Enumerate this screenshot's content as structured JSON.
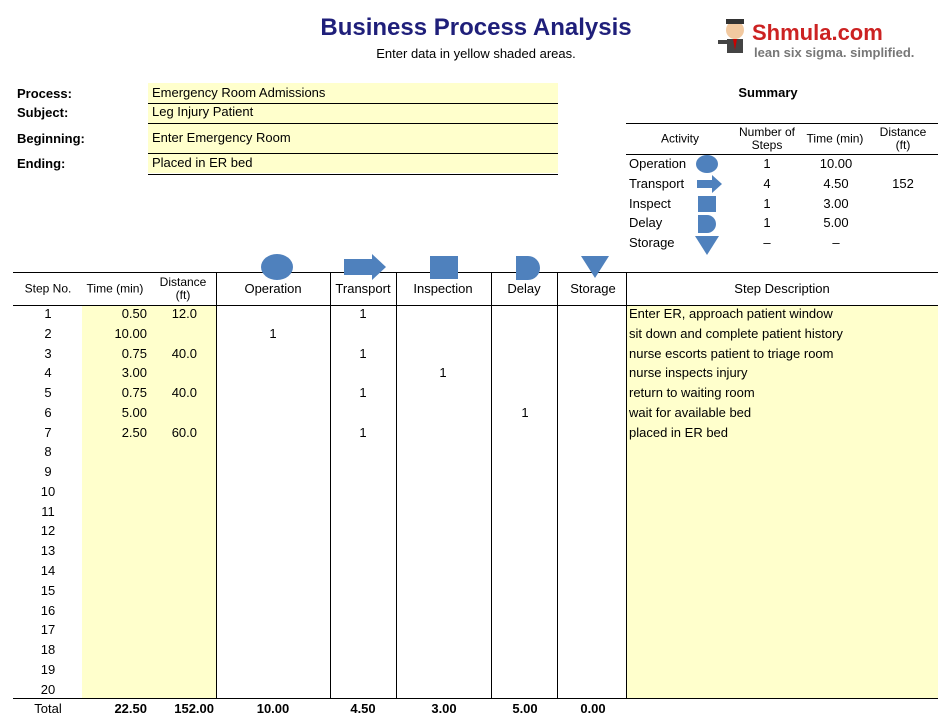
{
  "header": {
    "title": "Business Process Analysis",
    "subtitle": "Enter data in yellow shaded areas.",
    "logo_name": "Shmula.com",
    "logo_tagline": "lean six sigma. simplified."
  },
  "process": [
    {
      "label": "Process:",
      "value": "Emergency Room Admissions"
    },
    {
      "label": "Subject:",
      "value": "Leg Injury Patient"
    },
    {
      "label": "Beginning:",
      "value": "Enter Emergency Room"
    },
    {
      "label": "Ending:",
      "value": "Placed in ER bed"
    }
  ],
  "summary": {
    "title": "Summary",
    "columns": [
      "Activity",
      "Number of Steps",
      "Time (min)",
      "Distance (ft)"
    ],
    "rows": [
      [
        "Operation",
        "1",
        "10.00",
        null
      ],
      [
        "Transport",
        "4",
        "4.50",
        "152"
      ],
      [
        "Inspect",
        "1",
        "3.00",
        null
      ],
      [
        "Delay",
        "1",
        "5.00",
        null
      ],
      [
        "Storage",
        "–",
        "–",
        null
      ]
    ]
  },
  "steps_table": {
    "columns": [
      "Step No.",
      "Time (min)",
      "Distance (ft)",
      "Operation",
      "Transport",
      "Inspection",
      "Delay",
      "Storage",
      "Step Description"
    ],
    "rows": [
      [
        "1",
        "0.50",
        "12.0",
        null,
        "1",
        null,
        null,
        null,
        "Enter ER, approach patient window"
      ],
      [
        "2",
        "10.00",
        null,
        "1",
        null,
        null,
        null,
        null,
        "sit down and complete patient history"
      ],
      [
        "3",
        "0.75",
        "40.0",
        null,
        "1",
        null,
        null,
        null,
        "nurse escorts patient to triage room"
      ],
      [
        "4",
        "3.00",
        null,
        null,
        null,
        "1",
        null,
        null,
        "nurse inspects injury"
      ],
      [
        "5",
        "0.75",
        "40.0",
        null,
        "1",
        null,
        null,
        null,
        "return to waiting room"
      ],
      [
        "6",
        "5.00",
        null,
        null,
        null,
        null,
        "1",
        null,
        "wait for available bed"
      ],
      [
        "7",
        "2.50",
        "60.0",
        null,
        "1",
        null,
        null,
        null,
        "placed in ER bed"
      ],
      [
        "8",
        null,
        null,
        null,
        null,
        null,
        null,
        null,
        null
      ],
      [
        "9",
        null,
        null,
        null,
        null,
        null,
        null,
        null,
        null
      ],
      [
        "10",
        null,
        null,
        null,
        null,
        null,
        null,
        null,
        null
      ],
      [
        "11",
        null,
        null,
        null,
        null,
        null,
        null,
        null,
        null
      ],
      [
        "12",
        null,
        null,
        null,
        null,
        null,
        null,
        null,
        null
      ],
      [
        "13",
        null,
        null,
        null,
        null,
        null,
        null,
        null,
        null
      ],
      [
        "14",
        null,
        null,
        null,
        null,
        null,
        null,
        null,
        null
      ],
      [
        "15",
        null,
        null,
        null,
        null,
        null,
        null,
        null,
        null
      ],
      [
        "16",
        null,
        null,
        null,
        null,
        null,
        null,
        null,
        null
      ],
      [
        "17",
        null,
        null,
        null,
        null,
        null,
        null,
        null,
        null
      ],
      [
        "18",
        null,
        null,
        null,
        null,
        null,
        null,
        null,
        null
      ],
      [
        "19",
        null,
        null,
        null,
        null,
        null,
        null,
        null,
        null
      ],
      [
        "20",
        null,
        null,
        null,
        null,
        null,
        null,
        null,
        null
      ]
    ],
    "total": [
      "Total",
      "22.50",
      "152.00",
      "10.00",
      "4.50",
      "3.00",
      "5.00",
      "0.00"
    ]
  }
}
